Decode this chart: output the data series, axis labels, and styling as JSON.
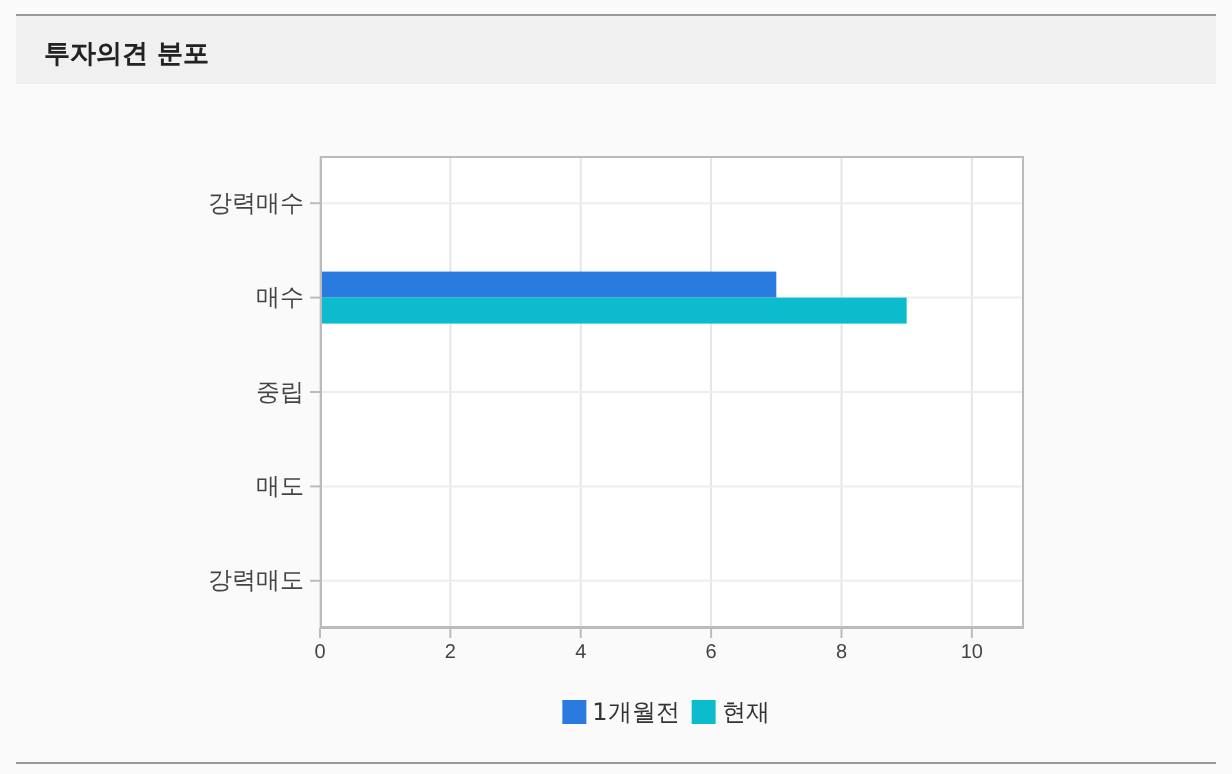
{
  "chart_data": {
    "type": "bar",
    "title": "투자의견 분포",
    "orientation": "horizontal",
    "categories": [
      "강력매수",
      "매수",
      "중립",
      "매도",
      "강력매도"
    ],
    "series": [
      {
        "name": "1개월전",
        "color": "#2a7be0",
        "values": [
          0,
          7,
          0,
          0,
          0
        ]
      },
      {
        "name": "현재",
        "color": "#0cbccc",
        "values": [
          0,
          9,
          0,
          0,
          0
        ]
      }
    ],
    "xlim": [
      0,
      10.8
    ],
    "xticks": [
      0,
      2,
      4,
      6,
      8,
      10
    ],
    "grid": true,
    "legend": "bottom"
  }
}
